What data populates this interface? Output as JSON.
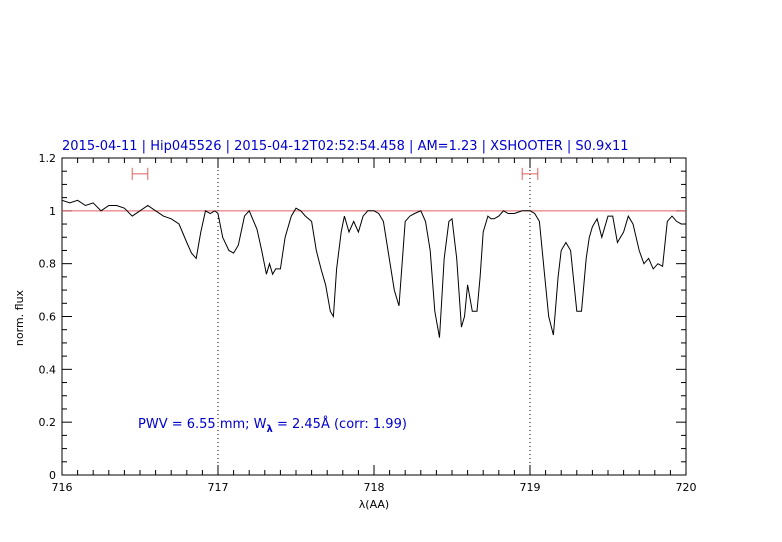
{
  "chart_data": {
    "type": "line",
    "title": "2015-04-11 | Hip045526 | 2015-04-12T02:52:54.458 | AM=1.23 | XSHOOTER | S0.9x11",
    "xlabel": "λ(AA)",
    "ylabel": "norm. flux",
    "xlim": [
      716,
      720
    ],
    "ylim": [
      0,
      1.2
    ],
    "x_ticks": [
      "716",
      "717",
      "718",
      "719",
      "720"
    ],
    "y_ticks": [
      "0",
      "0.2",
      "0.4",
      "0.6",
      "0.8",
      "1",
      "1.2"
    ],
    "annotation": {
      "prefix": "PWV = 6.55 mm; W",
      "subscript": "λ",
      "suffix": " = 2.45Å (corr: 1.99)"
    },
    "reference_line": {
      "y": 1.0,
      "color": "#e06060"
    },
    "dotted_lines_x": [
      717.0,
      719.0
    ],
    "windows": [
      {
        "x1": 716.45,
        "x2": 716.55,
        "y": 1.14
      },
      {
        "x1": 718.95,
        "x2": 719.05,
        "y": 1.14
      }
    ],
    "series": [
      {
        "color": "#000000",
        "x": [
          716.0,
          716.05,
          716.1,
          716.15,
          716.2,
          716.25,
          716.3,
          716.35,
          716.4,
          716.45,
          716.5,
          716.55,
          716.6,
          716.65,
          716.7,
          716.75,
          716.8,
          716.83,
          716.86,
          716.89,
          716.92,
          716.95,
          716.98,
          717.0,
          717.03,
          717.07,
          717.1,
          717.13,
          717.17,
          717.2,
          717.25,
          717.28,
          717.31,
          717.33,
          717.35,
          717.37,
          717.4,
          717.43,
          717.47,
          717.5,
          717.53,
          717.56,
          717.6,
          717.63,
          717.66,
          717.69,
          717.72,
          717.74,
          717.76,
          717.79,
          717.81,
          717.84,
          717.87,
          717.9,
          717.93,
          717.96,
          718.0,
          718.03,
          718.06,
          718.09,
          718.13,
          718.16,
          718.18,
          718.2,
          718.23,
          718.26,
          718.3,
          718.33,
          718.36,
          718.39,
          718.42,
          718.45,
          718.48,
          718.5,
          718.53,
          718.56,
          718.58,
          718.6,
          718.63,
          718.66,
          718.68,
          718.7,
          718.73,
          718.75,
          718.77,
          718.8,
          718.83,
          718.86,
          718.9,
          718.95,
          719.0,
          719.03,
          719.06,
          719.09,
          719.12,
          719.15,
          719.18,
          719.2,
          719.23,
          719.26,
          719.3,
          719.33,
          719.36,
          719.38,
          719.4,
          719.43,
          719.46,
          719.5,
          719.53,
          719.56,
          719.6,
          719.63,
          719.66,
          719.7,
          719.73,
          719.76,
          719.79,
          719.82,
          719.85,
          719.88,
          719.91,
          719.94,
          719.97,
          720.0
        ],
        "y": [
          1.04,
          1.03,
          1.04,
          1.02,
          1.03,
          1.0,
          1.02,
          1.02,
          1.01,
          0.98,
          1.0,
          1.02,
          1.0,
          0.98,
          0.97,
          0.95,
          0.88,
          0.84,
          0.82,
          0.92,
          1.0,
          0.99,
          1.0,
          0.99,
          0.9,
          0.85,
          0.84,
          0.87,
          0.98,
          1.0,
          0.93,
          0.85,
          0.76,
          0.8,
          0.76,
          0.78,
          0.78,
          0.9,
          0.98,
          1.01,
          1.0,
          0.98,
          0.96,
          0.85,
          0.78,
          0.72,
          0.62,
          0.6,
          0.78,
          0.92,
          0.98,
          0.92,
          0.96,
          0.92,
          0.98,
          1.0,
          1.0,
          0.99,
          0.96,
          0.85,
          0.7,
          0.64,
          0.8,
          0.96,
          0.98,
          0.99,
          1.0,
          0.96,
          0.85,
          0.62,
          0.52,
          0.82,
          0.96,
          0.97,
          0.82,
          0.56,
          0.6,
          0.72,
          0.62,
          0.62,
          0.75,
          0.92,
          0.98,
          0.97,
          0.97,
          0.98,
          1.0,
          0.99,
          0.99,
          1.0,
          1.0,
          0.99,
          0.96,
          0.78,
          0.6,
          0.53,
          0.75,
          0.85,
          0.88,
          0.85,
          0.62,
          0.62,
          0.82,
          0.9,
          0.94,
          0.97,
          0.9,
          0.98,
          0.98,
          0.88,
          0.92,
          0.98,
          0.95,
          0.85,
          0.8,
          0.82,
          0.78,
          0.8,
          0.79,
          0.96,
          0.98,
          0.96,
          0.95,
          0.95
        ]
      }
    ]
  }
}
